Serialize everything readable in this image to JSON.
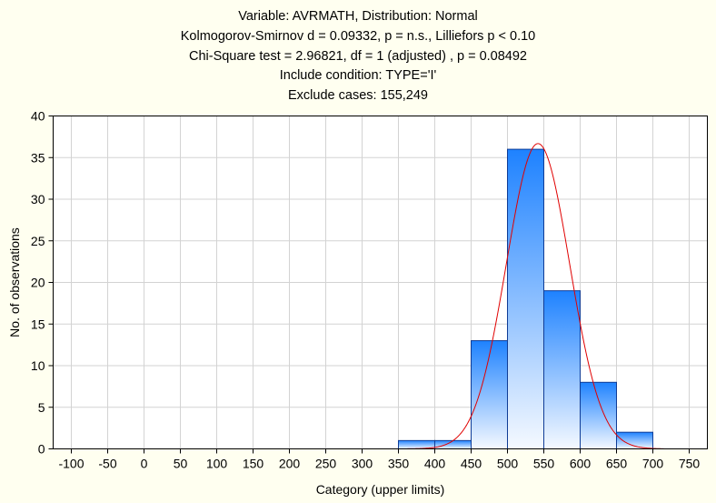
{
  "chart_data": {
    "type": "bar",
    "title_lines": [
      "Variable: AVRMATH, Distribution: Normal",
      "Kolmogorov-Smirnov d = 0.09332, p = n.s., Lilliefors p < 0.10",
      "Chi-Square test = 2.96821, df = 1 (adjusted) , p = 0.08492",
      "Include condition: TYPE='I'",
      "Exclude cases: 155,249"
    ],
    "xlabel": "Category (upper limits)",
    "ylabel": "No. of observations",
    "xlim": [
      -125,
      775
    ],
    "ylim": [
      0,
      40
    ],
    "xticks": [
      -100,
      -50,
      0,
      50,
      100,
      150,
      200,
      250,
      300,
      350,
      400,
      450,
      500,
      550,
      600,
      650,
      700,
      750
    ],
    "yticks": [
      0,
      5,
      10,
      15,
      20,
      25,
      30,
      35,
      40
    ],
    "grid": true,
    "bins": [
      {
        "upper": 400,
        "count": 1
      },
      {
        "upper": 450,
        "count": 1
      },
      {
        "upper": 500,
        "count": 13
      },
      {
        "upper": 550,
        "count": 36
      },
      {
        "upper": 600,
        "count": 19
      },
      {
        "upper": 650,
        "count": 8
      },
      {
        "upper": 700,
        "count": 2
      }
    ],
    "bin_width": 50,
    "normal_curve": {
      "mean": 542,
      "sd": 43.5,
      "n": 80,
      "range": [
        345,
        715
      ]
    },
    "colors": {
      "background": "#fffff0",
      "plot_background": "#ffffff",
      "grid": "#d3d3d3",
      "bar_top": "#1e82ff",
      "bar_bottom": "#f5f9ff",
      "bar_stroke": "#0f3c96",
      "curve": "#e00000"
    }
  }
}
